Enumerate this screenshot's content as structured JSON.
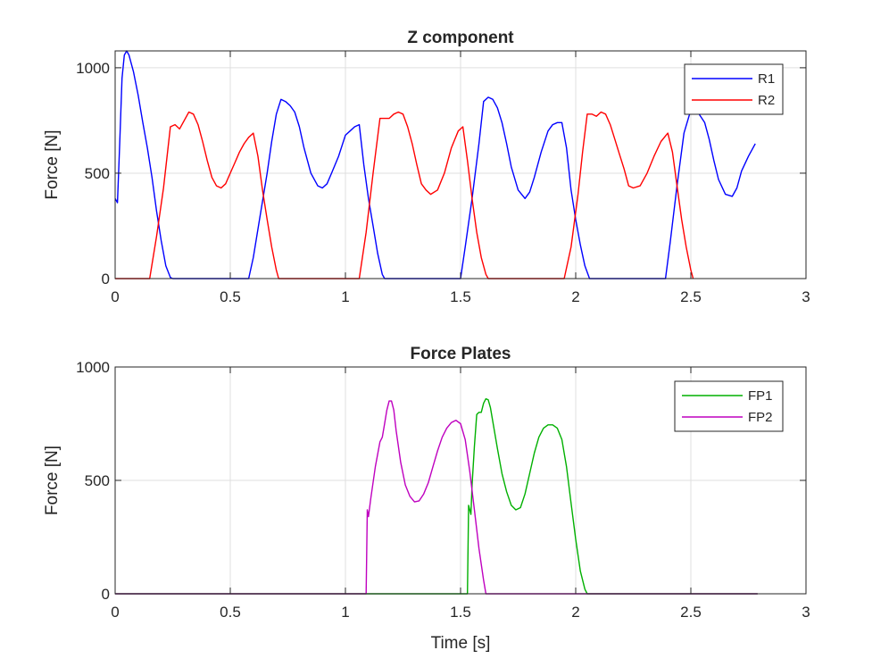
{
  "chart_data": [
    {
      "type": "line",
      "title": "Z component",
      "xlabel": "",
      "ylabel": "Force [N]",
      "xlim": [
        0,
        3
      ],
      "ylim": [
        0,
        1080
      ],
      "xticks": [
        0,
        0.5,
        1,
        1.5,
        2,
        2.5,
        3
      ],
      "xtick_labels": [
        "0",
        "0.5",
        "1",
        "1.5",
        "2",
        "2.5",
        "3"
      ],
      "yticks": [
        0,
        500,
        1000
      ],
      "ytick_labels": [
        "0",
        "500",
        "1000"
      ],
      "grid": true,
      "legend_position": "top-right",
      "series": [
        {
          "name": "R1",
          "color": "#0000ff",
          "x": [
            0,
            0.01,
            0.02,
            0.03,
            0.04,
            0.05,
            0.06,
            0.08,
            0.1,
            0.12,
            0.14,
            0.16,
            0.18,
            0.2,
            0.22,
            0.24,
            0.25,
            0.58,
            0.6,
            0.63,
            0.66,
            0.68,
            0.7,
            0.72,
            0.74,
            0.76,
            0.78,
            0.8,
            0.82,
            0.85,
            0.88,
            0.9,
            0.92,
            0.94,
            0.97,
            1.0,
            1.02,
            1.04,
            1.06,
            1.08,
            1.1,
            1.12,
            1.14,
            1.16,
            1.17,
            1.5,
            1.52,
            1.55,
            1.58,
            1.6,
            1.62,
            1.64,
            1.66,
            1.68,
            1.7,
            1.72,
            1.75,
            1.78,
            1.8,
            1.82,
            1.85,
            1.88,
            1.9,
            1.92,
            1.94,
            1.96,
            1.98,
            2.0,
            2.02,
            2.04,
            2.06,
            2.39,
            2.41,
            2.44,
            2.47,
            2.5,
            2.53,
            2.56,
            2.58,
            2.6,
            2.62,
            2.65,
            2.68,
            2.7,
            2.72,
            2.75,
            2.78
          ],
          "values": [
            380,
            360,
            650,
            950,
            1060,
            1080,
            1060,
            980,
            870,
            740,
            620,
            480,
            320,
            180,
            60,
            5,
            0,
            0,
            100,
            300,
            500,
            650,
            780,
            850,
            840,
            820,
            790,
            720,
            620,
            500,
            440,
            430,
            450,
            500,
            580,
            680,
            700,
            720,
            730,
            540,
            380,
            250,
            120,
            20,
            0,
            0,
            150,
            380,
            640,
            840,
            860,
            850,
            810,
            740,
            640,
            530,
            420,
            380,
            410,
            480,
            600,
            700,
            730,
            740,
            740,
            620,
            420,
            280,
            160,
            60,
            0,
            0,
            170,
            440,
            690,
            800,
            790,
            740,
            660,
            560,
            470,
            400,
            390,
            430,
            510,
            580,
            640
          ]
        },
        {
          "name": "R2",
          "color": "#ff0000",
          "x": [
            0,
            0.15,
            0.18,
            0.21,
            0.24,
            0.26,
            0.28,
            0.3,
            0.32,
            0.34,
            0.36,
            0.38,
            0.4,
            0.42,
            0.44,
            0.46,
            0.48,
            0.5,
            0.52,
            0.54,
            0.56,
            0.58,
            0.6,
            0.62,
            0.64,
            0.66,
            0.68,
            0.7,
            0.71,
            1.06,
            1.09,
            1.12,
            1.15,
            1.17,
            1.19,
            1.21,
            1.23,
            1.25,
            1.27,
            1.29,
            1.31,
            1.33,
            1.35,
            1.37,
            1.4,
            1.43,
            1.46,
            1.49,
            1.51,
            1.53,
            1.55,
            1.57,
            1.59,
            1.61,
            1.62,
            1.95,
            1.98,
            2.01,
            2.03,
            2.05,
            2.07,
            2.09,
            2.11,
            2.13,
            2.15,
            2.17,
            2.19,
            2.21,
            2.23,
            2.25,
            2.28,
            2.31,
            2.34,
            2.37,
            2.4,
            2.42,
            2.44,
            2.46,
            2.48,
            2.5,
            2.51
          ],
          "values": [
            0,
            0,
            200,
            430,
            720,
            730,
            710,
            750,
            790,
            780,
            730,
            650,
            560,
            480,
            440,
            430,
            450,
            500,
            550,
            600,
            640,
            670,
            690,
            580,
            420,
            280,
            150,
            40,
            0,
            0,
            220,
            500,
            760,
            760,
            760,
            780,
            790,
            780,
            720,
            640,
            540,
            450,
            420,
            400,
            420,
            500,
            620,
            700,
            720,
            560,
            380,
            220,
            100,
            20,
            0,
            0,
            150,
            400,
            600,
            780,
            780,
            770,
            790,
            780,
            730,
            660,
            590,
            520,
            440,
            430,
            440,
            500,
            580,
            650,
            690,
            600,
            440,
            280,
            150,
            40,
            0
          ]
        }
      ]
    },
    {
      "type": "line",
      "title": "Force Plates",
      "xlabel": "Time [s]",
      "ylabel": "Force [N]",
      "xlim": [
        0,
        3
      ],
      "ylim": [
        0,
        1000
      ],
      "xticks": [
        0,
        0.5,
        1,
        1.5,
        2,
        2.5,
        3
      ],
      "xtick_labels": [
        "0",
        "0.5",
        "1",
        "1.5",
        "2",
        "2.5",
        "3"
      ],
      "yticks": [
        0,
        500,
        1000
      ],
      "ytick_labels": [
        "0",
        "500",
        "1000"
      ],
      "grid": true,
      "legend_position": "top-right",
      "series": [
        {
          "name": "FP1",
          "color": "#00b000",
          "x": [
            0,
            1.53,
            1.535,
            1.545,
            1.55,
            1.56,
            1.57,
            1.58,
            1.59,
            1.6,
            1.61,
            1.62,
            1.63,
            1.64,
            1.66,
            1.68,
            1.7,
            1.72,
            1.74,
            1.76,
            1.78,
            1.8,
            1.82,
            1.84,
            1.86,
            1.88,
            1.9,
            1.92,
            1.94,
            1.96,
            1.98,
            2.0,
            2.02,
            2.04,
            2.05,
            2.79
          ],
          "values": [
            0,
            0,
            390,
            350,
            480,
            650,
            790,
            800,
            800,
            840,
            860,
            855,
            820,
            760,
            640,
            530,
            450,
            390,
            370,
            380,
            440,
            530,
            620,
            690,
            730,
            745,
            745,
            730,
            680,
            560,
            400,
            240,
            100,
            20,
            0,
            0
          ]
        },
        {
          "name": "FP2",
          "color": "#bf00bf",
          "x": [
            0,
            1.09,
            1.095,
            1.1,
            1.11,
            1.13,
            1.15,
            1.16,
            1.17,
            1.18,
            1.19,
            1.2,
            1.21,
            1.22,
            1.24,
            1.26,
            1.28,
            1.3,
            1.32,
            1.34,
            1.36,
            1.38,
            1.4,
            1.42,
            1.44,
            1.46,
            1.48,
            1.5,
            1.52,
            1.54,
            1.56,
            1.58,
            1.6,
            1.61,
            2.79
          ],
          "values": [
            0,
            0,
            370,
            340,
            420,
            560,
            670,
            690,
            750,
            810,
            850,
            850,
            810,
            720,
            580,
            480,
            430,
            405,
            410,
            440,
            490,
            560,
            630,
            690,
            730,
            755,
            765,
            750,
            680,
            540,
            370,
            200,
            60,
            0,
            0
          ]
        }
      ]
    }
  ]
}
